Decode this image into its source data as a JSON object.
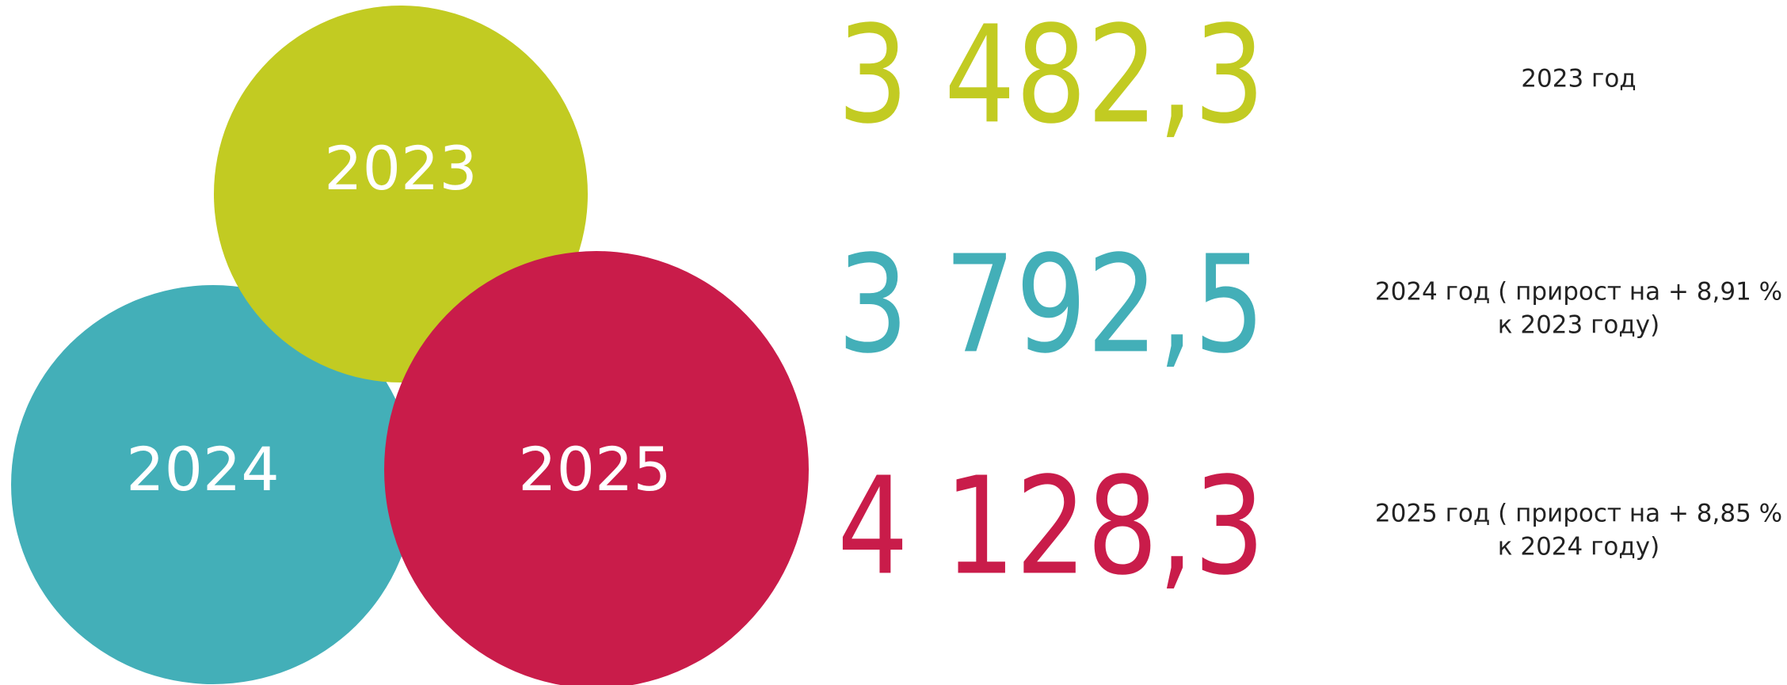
{
  "items": [
    {
      "year": "2023",
      "value": "3 482,3",
      "color": "#c2cb22",
      "caption": [
        "2023 год"
      ]
    },
    {
      "year": "2024",
      "value": "3 792,5",
      "color": "#43afb8",
      "caption": [
        "2024 год ( прирост на + 8,91 %",
        "к 2023 году)"
      ]
    },
    {
      "year": "2025",
      "value": "4 128,3",
      "color": "#c91c4a",
      "caption": [
        "2025 год ( прирост на + 8,85 %",
        "к 2024 году)"
      ]
    }
  ]
}
